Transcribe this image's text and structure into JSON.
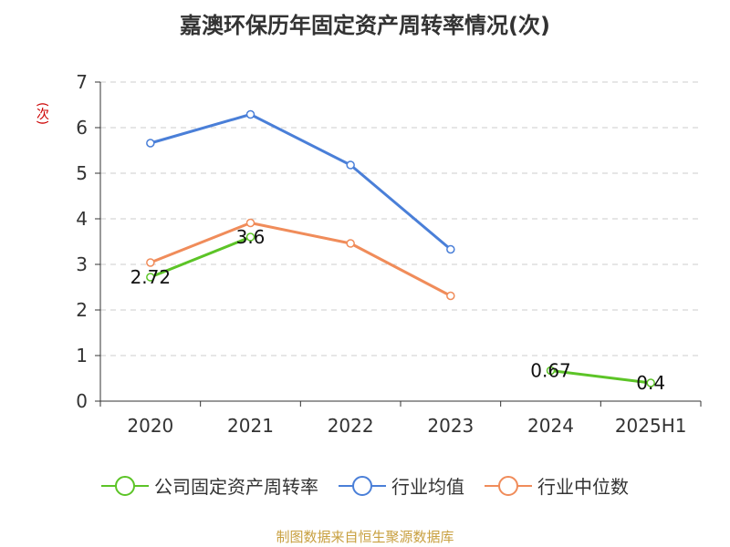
{
  "chart_data": {
    "type": "line",
    "title": "嘉澳环保历年固定资产周转率情况(次)",
    "ylabel": "(次)",
    "categories": [
      "2020",
      "2021",
      "2022",
      "2023",
      "2024",
      "2025H1"
    ],
    "ylim": [
      0,
      7
    ],
    "yticks": [
      "0",
      "1",
      "2",
      "3",
      "4",
      "5",
      "6",
      "7"
    ],
    "grid": true,
    "legend_position": "bottom",
    "series": [
      {
        "name": "公司固定资产周转率",
        "color": "#5cc427",
        "values": [
          2.72,
          3.6,
          null,
          null,
          0.67,
          0.4
        ],
        "labels": [
          "2.72",
          "3.6",
          "",
          "",
          "0.67",
          "0.4"
        ]
      },
      {
        "name": "行业均值",
        "color": "#4a7fd8",
        "values": [
          5.66,
          6.29,
          5.18,
          3.33,
          null,
          null
        ],
        "labels": []
      },
      {
        "name": "行业中位数",
        "color": "#f08c5a",
        "values": [
          3.04,
          3.91,
          3.46,
          2.31,
          null,
          null
        ],
        "labels": []
      }
    ]
  },
  "source": "制图数据来自恒生聚源数据库"
}
